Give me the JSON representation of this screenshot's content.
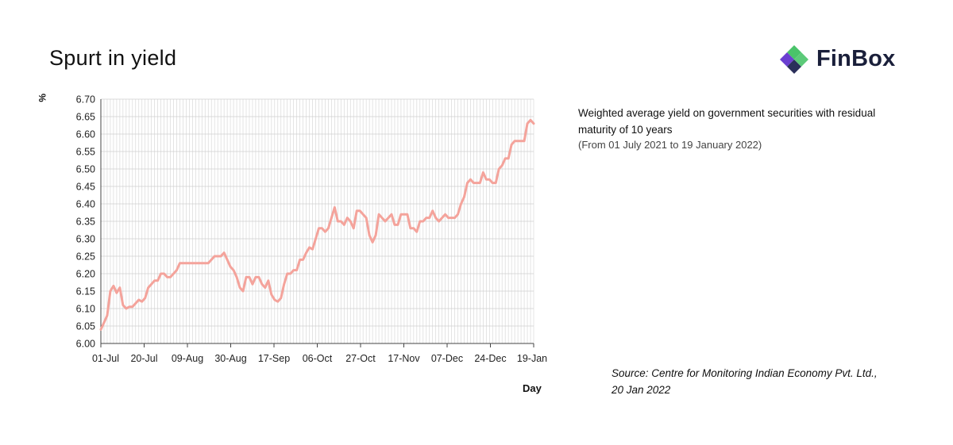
{
  "header": {
    "title": "Spurt in yield",
    "logo_text": "FinBox"
  },
  "description": {
    "main": "Weighted average yield on government securities with residual maturity of 10 years",
    "sub": "(From 01 July 2021 to 19 January 2022)"
  },
  "source": "Source: Centre for Monitoring  Indian Economy Pvt. Ltd., 20 Jan 2022",
  "chart_data": {
    "type": "line",
    "title": "Spurt in yield",
    "xlabel": "Day",
    "ylabel": "%",
    "ylim": [
      6.0,
      6.7
    ],
    "yticks": [
      "6.00",
      "6.05",
      "6.10",
      "6.15",
      "6.20",
      "6.25",
      "6.30",
      "6.35",
      "6.40",
      "6.45",
      "6.50",
      "6.55",
      "6.60",
      "6.65",
      "6.70"
    ],
    "xticks": [
      "01-Jul",
      "20-Jul",
      "09-Aug",
      "30-Aug",
      "17-Sep",
      "06-Oct",
      "27-Oct",
      "17-Nov",
      "07-Dec",
      "24-Dec",
      "19-Jan"
    ],
    "grid": true,
    "line_color": "#f4a39b",
    "series": [
      {
        "values": [
          6.04,
          6.06,
          6.08,
          6.15,
          6.165,
          6.145,
          6.16,
          6.11,
          6.1,
          6.105,
          6.105,
          6.115,
          6.125,
          6.12,
          6.13,
          6.16,
          6.17,
          6.18,
          6.18,
          6.2,
          6.2,
          6.19,
          6.19,
          6.2,
          6.21,
          6.23,
          6.23,
          6.23,
          6.23,
          6.23,
          6.23,
          6.23,
          6.23,
          6.23,
          6.23,
          6.24,
          6.25,
          6.25,
          6.25,
          6.26,
          6.24,
          6.22,
          6.21,
          6.19,
          6.16,
          6.15,
          6.19,
          6.19,
          6.17,
          6.19,
          6.19,
          6.17,
          6.16,
          6.18,
          6.14,
          6.125,
          6.12,
          6.13,
          6.17,
          6.2,
          6.2,
          6.21,
          6.21,
          6.24,
          6.24,
          6.26,
          6.275,
          6.27,
          6.3,
          6.33,
          6.33,
          6.32,
          6.33,
          6.36,
          6.39,
          6.35,
          6.35,
          6.34,
          6.36,
          6.35,
          6.33,
          6.38,
          6.38,
          6.37,
          6.36,
          6.31,
          6.29,
          6.31,
          6.37,
          6.36,
          6.35,
          6.36,
          6.37,
          6.34,
          6.34,
          6.37,
          6.37,
          6.37,
          6.33,
          6.33,
          6.32,
          6.35,
          6.35,
          6.36,
          6.36,
          6.38,
          6.36,
          6.35,
          6.36,
          6.37,
          6.36,
          6.36,
          6.36,
          6.37,
          6.4,
          6.42,
          6.46,
          6.47,
          6.46,
          6.46,
          6.46,
          6.49,
          6.47,
          6.47,
          6.46,
          6.46,
          6.5,
          6.51,
          6.53,
          6.53,
          6.57,
          6.58,
          6.58,
          6.58,
          6.58,
          6.63,
          6.64,
          6.63
        ]
      }
    ]
  }
}
